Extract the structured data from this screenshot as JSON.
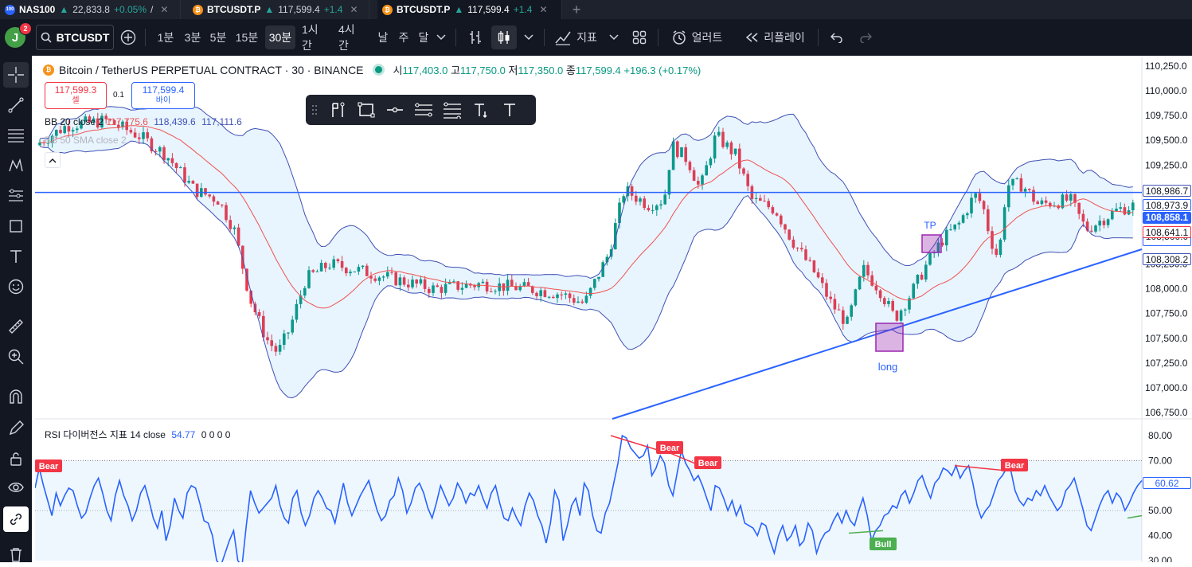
{
  "tabs": [
    {
      "symbol": "NAS100",
      "price": "22,833.8",
      "change": "+0.05%",
      "extra": "/"
    },
    {
      "symbol": "BTCUSDT.P",
      "price": "117,599.4",
      "change": "+1.4"
    },
    {
      "symbol": "BTCUSDT.P",
      "price": "117,599.4",
      "change": "+1.4"
    }
  ],
  "toolbar": {
    "avatar_letter": "J",
    "avatar_badge": "2",
    "symbol": "BTCUSDT",
    "intervals": [
      "1분",
      "3분",
      "5분",
      "15분",
      "30분",
      "1시간",
      "4시간",
      "날",
      "주",
      "달"
    ],
    "active_interval": "30분",
    "indicators_label": "지표",
    "alert_label": "얼러트",
    "replay_label": "리플레이"
  },
  "legend": {
    "title": "Bitcoin / TetherUS PERPETUAL CONTRACT · 30 · BINANCE",
    "open_label": "시",
    "open": "117,403.0",
    "high_label": "고",
    "high": "117,750.0",
    "low_label": "저",
    "low": "117,350.0",
    "close_label": "종",
    "close": "117,599.4",
    "change": "+196.3 (+0.17%)",
    "sell_price": "117,599.3",
    "sell_label": "셀",
    "spread": "0.1",
    "buy_price": "117,599.4",
    "buy_label": "바이",
    "bb_label": "BB 20 close 2",
    "bb_basis": "117,775.6",
    "bb_upper": "118,439.6",
    "bb_lower": "117,111.6",
    "bb2_label": "BB 50 SMA close 2"
  },
  "rsi_legend": {
    "label": "RSI 다이버전스 지표 14 close",
    "value": "54.77",
    "zeros": "0 0 0 0"
  },
  "price_axis": {
    "ticks": [
      "110,250.0",
      "110,000.0",
      "109,750.0",
      "109,500.0",
      "109,250.0",
      "108,000.0",
      "107,750.0",
      "107,500.0",
      "107,250.0",
      "107,000.0",
      "106,750.0"
    ],
    "partial_tick": "108,250.0",
    "tags": {
      "bb_upper": "108,986.7",
      "hline": "108,973.9",
      "last": "108,858.1",
      "bb_basis": "108,641.1",
      "bb_lower": "108,308.2",
      "trendline_partial": "108,500.0"
    }
  },
  "rsi_axis": {
    "ticks": [
      "80.00",
      "70.00",
      "50.00",
      "40.00",
      "30.00"
    ],
    "partial_tick": "60.00",
    "value_tag": "60.62"
  },
  "annotations": {
    "tp": "TP",
    "long": "long",
    "bear": "Bear",
    "bull": "Bull"
  },
  "colors": {
    "accent": "#2962ff",
    "up": "#089981",
    "down": "#f23645",
    "bb_basis": "#f05350",
    "bb_band": "#3f51b5",
    "rsi": "#2962ff",
    "box": "#9c27b0"
  },
  "rsi_series": [
    59,
    67,
    60,
    54,
    48,
    57,
    52,
    56,
    59,
    58,
    52,
    47,
    49,
    55,
    60,
    63,
    57,
    50,
    46,
    56,
    62,
    56,
    52,
    46,
    50,
    57,
    60,
    54,
    47,
    43,
    50,
    38,
    44,
    55,
    50,
    47,
    57,
    60,
    59,
    53,
    46,
    45,
    40,
    30,
    28,
    33,
    38,
    42,
    30,
    28,
    44,
    58,
    53,
    49,
    51,
    53,
    55,
    60,
    52,
    47,
    45,
    55,
    58,
    49,
    44,
    48,
    55,
    58,
    55,
    51,
    50,
    45,
    53,
    61,
    53,
    48,
    52,
    56,
    59,
    62,
    56,
    50,
    46,
    48,
    54,
    56,
    63,
    58,
    49,
    53,
    59,
    61,
    57,
    51,
    47,
    53,
    60,
    56,
    52,
    55,
    61,
    58,
    53,
    57,
    56,
    60,
    55,
    51,
    57,
    60,
    53,
    47,
    46,
    51,
    47,
    44,
    52,
    57,
    54,
    48,
    44,
    37,
    45,
    58,
    54,
    38,
    44,
    52,
    55,
    48,
    61,
    58,
    48,
    42,
    41,
    49,
    53,
    61,
    69,
    80,
    79,
    75,
    73,
    71,
    72,
    76,
    64,
    67,
    72,
    69,
    60,
    56,
    65,
    74,
    69,
    66,
    62,
    64,
    60,
    55,
    50,
    60,
    59,
    55,
    50,
    54,
    48,
    52,
    45,
    44,
    43,
    40,
    45,
    44,
    38,
    33,
    40,
    44,
    38,
    40,
    44,
    36,
    38,
    45,
    42,
    33,
    38,
    41,
    42,
    46,
    49,
    45,
    50,
    46,
    44,
    50,
    55,
    48,
    38,
    42,
    44,
    48,
    49,
    52,
    51,
    56,
    58,
    53,
    57,
    62,
    64,
    59,
    55,
    61,
    63,
    67,
    66,
    64,
    68,
    63,
    66,
    68,
    61,
    52,
    47,
    50,
    52,
    57,
    62,
    64,
    67,
    66,
    58,
    54,
    52,
    55,
    54,
    58,
    56,
    60,
    56,
    53,
    50,
    52,
    58,
    60,
    63,
    57,
    51,
    44,
    42,
    47,
    52,
    56,
    58,
    53,
    57,
    55,
    50,
    53,
    57,
    60,
    62
  ]
}
